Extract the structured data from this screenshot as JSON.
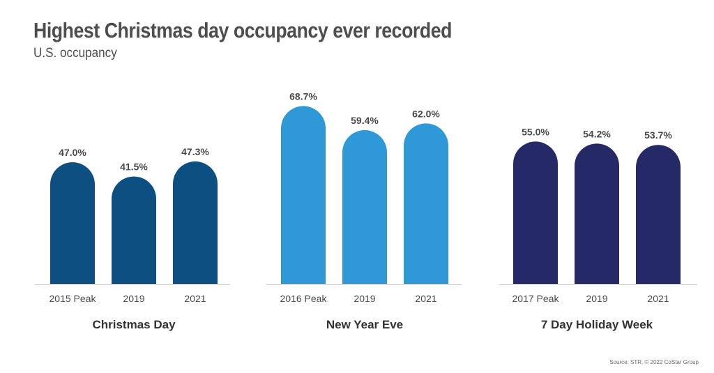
{
  "title": "Highest Christmas day occupancy ever recorded",
  "subtitle": "U.S. occupancy",
  "source": "Source: STR. © 2022 CoStar Group",
  "chart_data": {
    "type": "bar",
    "ylim": [
      0,
      80
    ],
    "value_suffix": "%",
    "groups": [
      {
        "name": "Christmas Day",
        "color": "#0e4f82",
        "categories": [
          "2015 Peak",
          "2019",
          "2021"
        ],
        "values": [
          47.0,
          41.5,
          47.3
        ]
      },
      {
        "name": "New Year Eve",
        "color": "#2e99d6",
        "categories": [
          "2016 Peak",
          "2019",
          "2021"
        ],
        "values": [
          68.7,
          59.4,
          62.0
        ]
      },
      {
        "name": "7 Day Holiday Week",
        "color": "#252a66",
        "categories": [
          "2017 Peak",
          "2019",
          "2021"
        ],
        "values": [
          55.0,
          54.2,
          53.7
        ]
      }
    ]
  }
}
